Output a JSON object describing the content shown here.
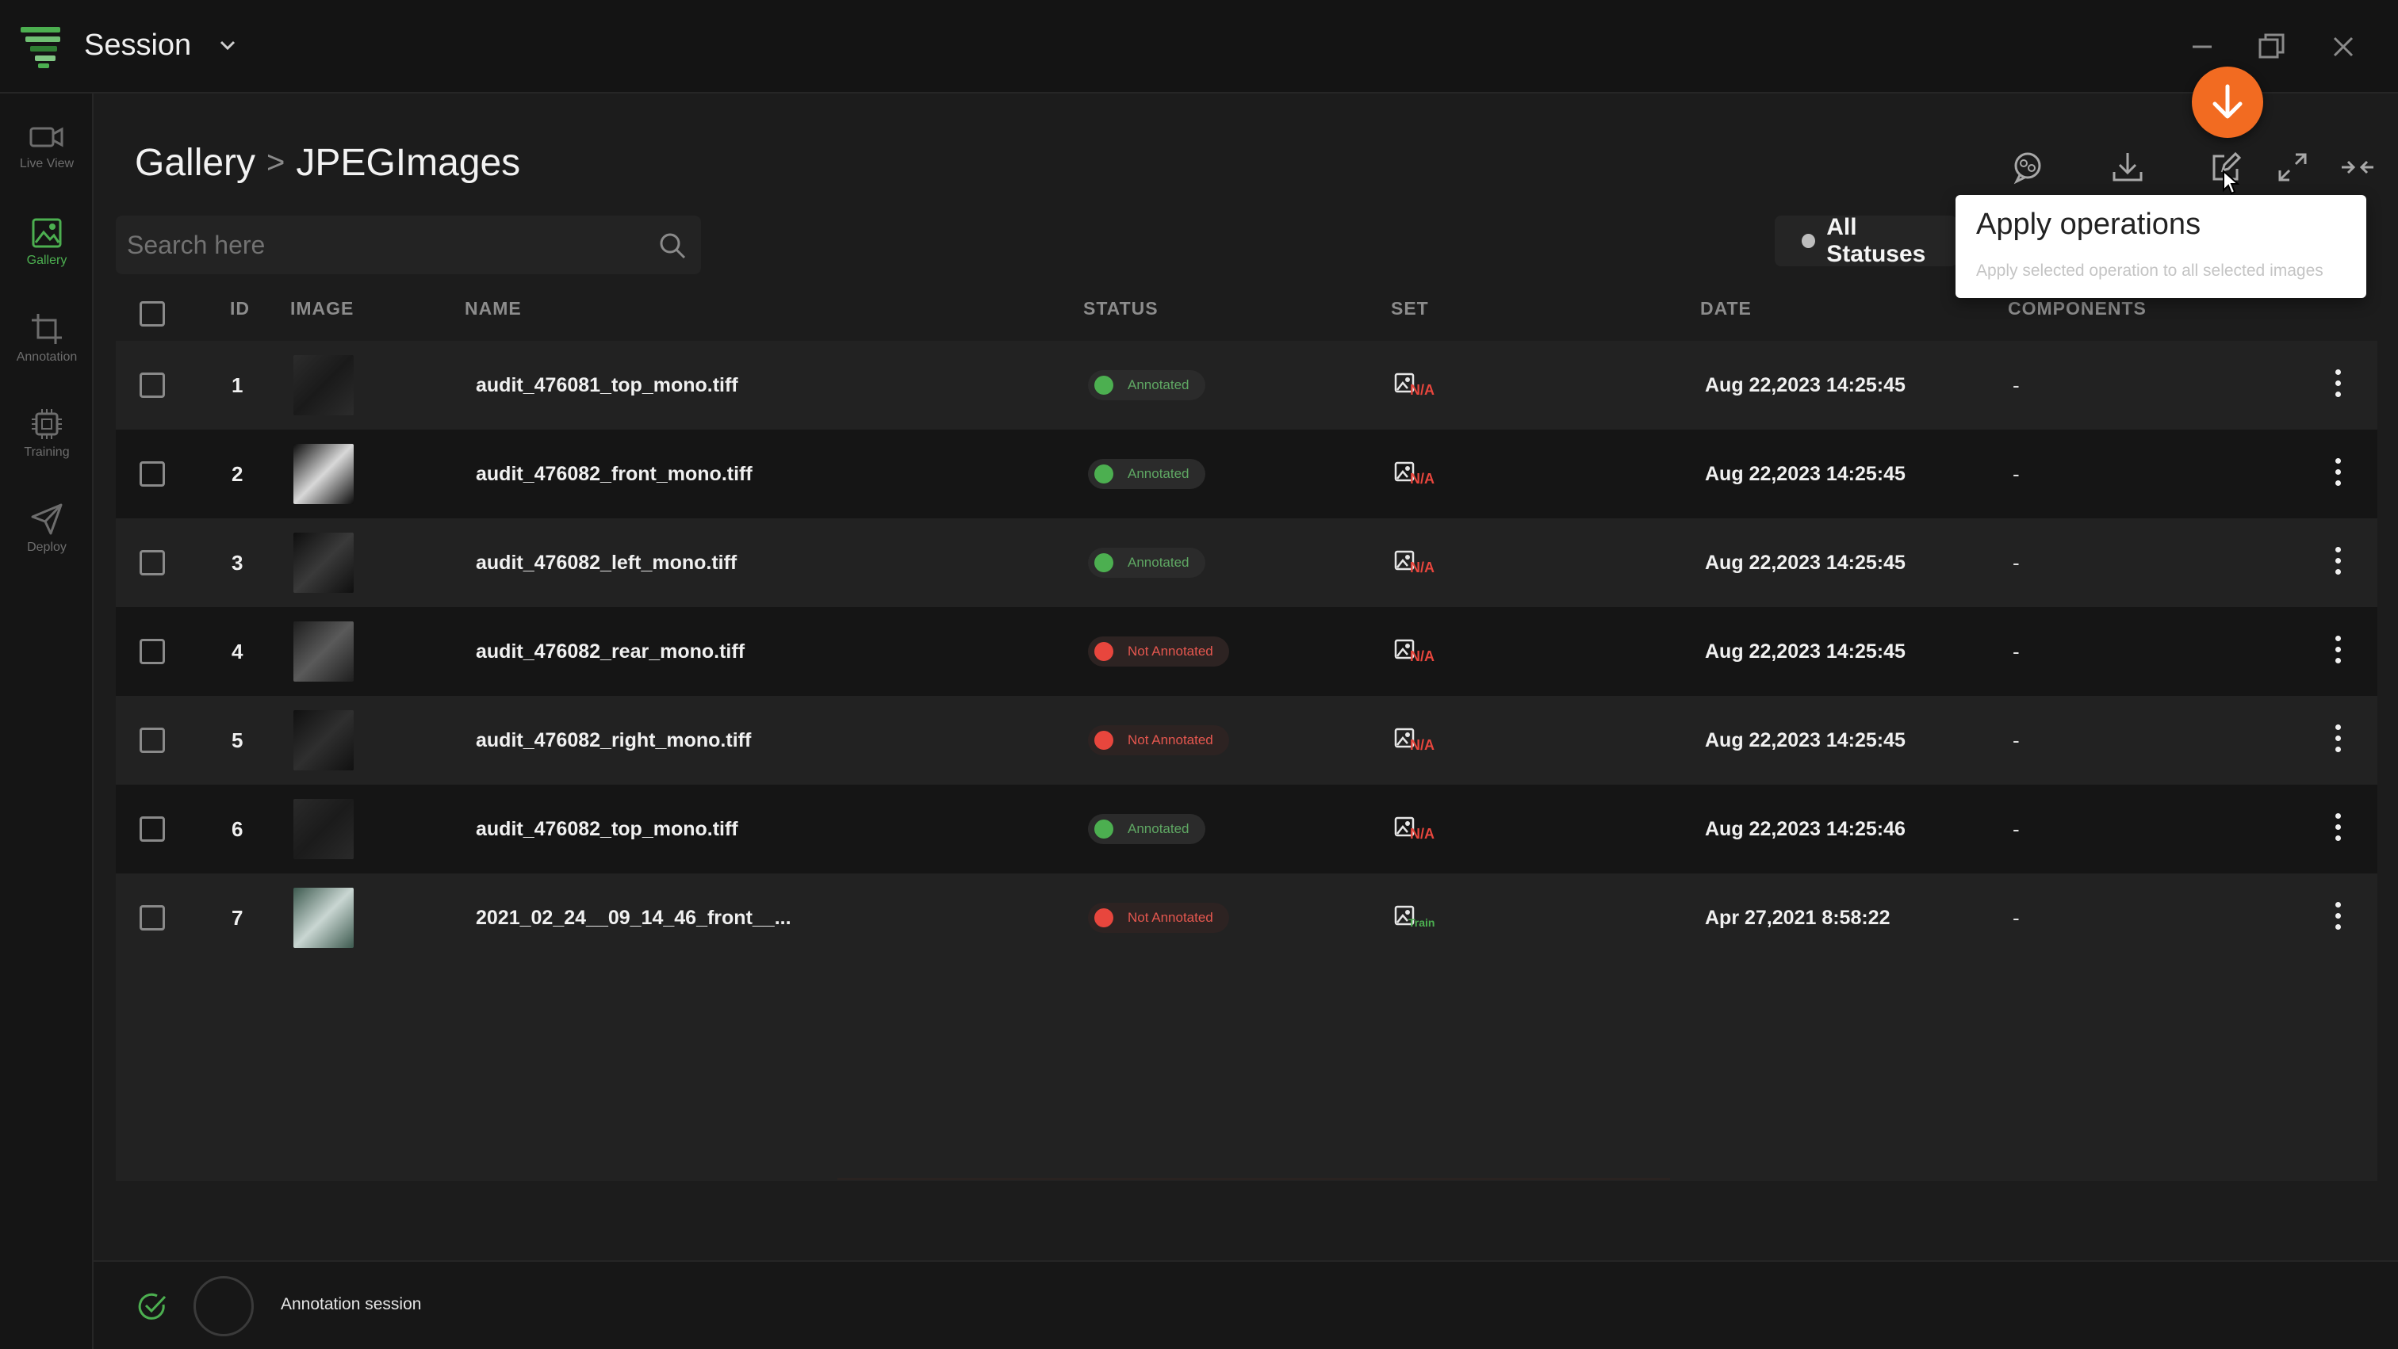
{
  "app": {
    "title": "Session"
  },
  "sidebar": {
    "items": [
      {
        "label": "Live View",
        "icon": "video-camera-icon",
        "active": false
      },
      {
        "label": "Gallery",
        "icon": "image-icon",
        "active": true
      },
      {
        "label": "Annotation",
        "icon": "crop-icon",
        "active": false
      },
      {
        "label": "Training",
        "icon": "chip-icon",
        "active": false
      },
      {
        "label": "Deploy",
        "icon": "send-icon",
        "active": false
      }
    ]
  },
  "breadcrumb": {
    "root": "Gallery",
    "separator": ">",
    "current": "JPEGImages"
  },
  "search": {
    "placeholder": "Search here",
    "value": ""
  },
  "status_filter": {
    "label": "All Statuses"
  },
  "tooltip": {
    "title": "Apply operations",
    "description": "Apply selected operation to all selected images"
  },
  "table": {
    "headers": {
      "id": "ID",
      "image": "IMAGE",
      "name": "NAME",
      "status": "STATUS",
      "set": "SET",
      "date": "DATE",
      "components": "COMPONENTS"
    },
    "rows": [
      {
        "id": "1",
        "name": "audit_476081_top_mono.tiff",
        "status": "Annotated",
        "set": "N/A",
        "date": "Aug 22,2023 14:25:45",
        "components": "-"
      },
      {
        "id": "2",
        "name": "audit_476082_front_mono.tiff",
        "status": "Annotated",
        "set": "N/A",
        "date": "Aug 22,2023 14:25:45",
        "components": "-"
      },
      {
        "id": "3",
        "name": "audit_476082_left_mono.tiff",
        "status": "Annotated",
        "set": "N/A",
        "date": "Aug 22,2023 14:25:45",
        "components": "-"
      },
      {
        "id": "4",
        "name": "audit_476082_rear_mono.tiff",
        "status": "Not Annotated",
        "set": "N/A",
        "date": "Aug 22,2023 14:25:45",
        "components": "-"
      },
      {
        "id": "5",
        "name": "audit_476082_right_mono.tiff",
        "status": "Not Annotated",
        "set": "N/A",
        "date": "Aug 22,2023 14:25:45",
        "components": "-"
      },
      {
        "id": "6",
        "name": "audit_476082_top_mono.tiff",
        "status": "Annotated",
        "set": "N/A",
        "date": "Aug 22,2023 14:25:46",
        "components": "-"
      },
      {
        "id": "7",
        "name": "2021_02_24__09_14_46_front__...",
        "status": "Not Annotated",
        "set": "Train",
        "date": "Apr 27,2021 8:58:22",
        "components": "-"
      }
    ]
  },
  "footer": {
    "label": "Annotation session"
  },
  "colors": {
    "accent_green": "#4caf50",
    "status_annotated": "#4caf50",
    "status_not_annotated": "#e8463d",
    "set_na": "#e8463d",
    "set_train": "#4caf50",
    "download_badge": "#f26b21"
  }
}
